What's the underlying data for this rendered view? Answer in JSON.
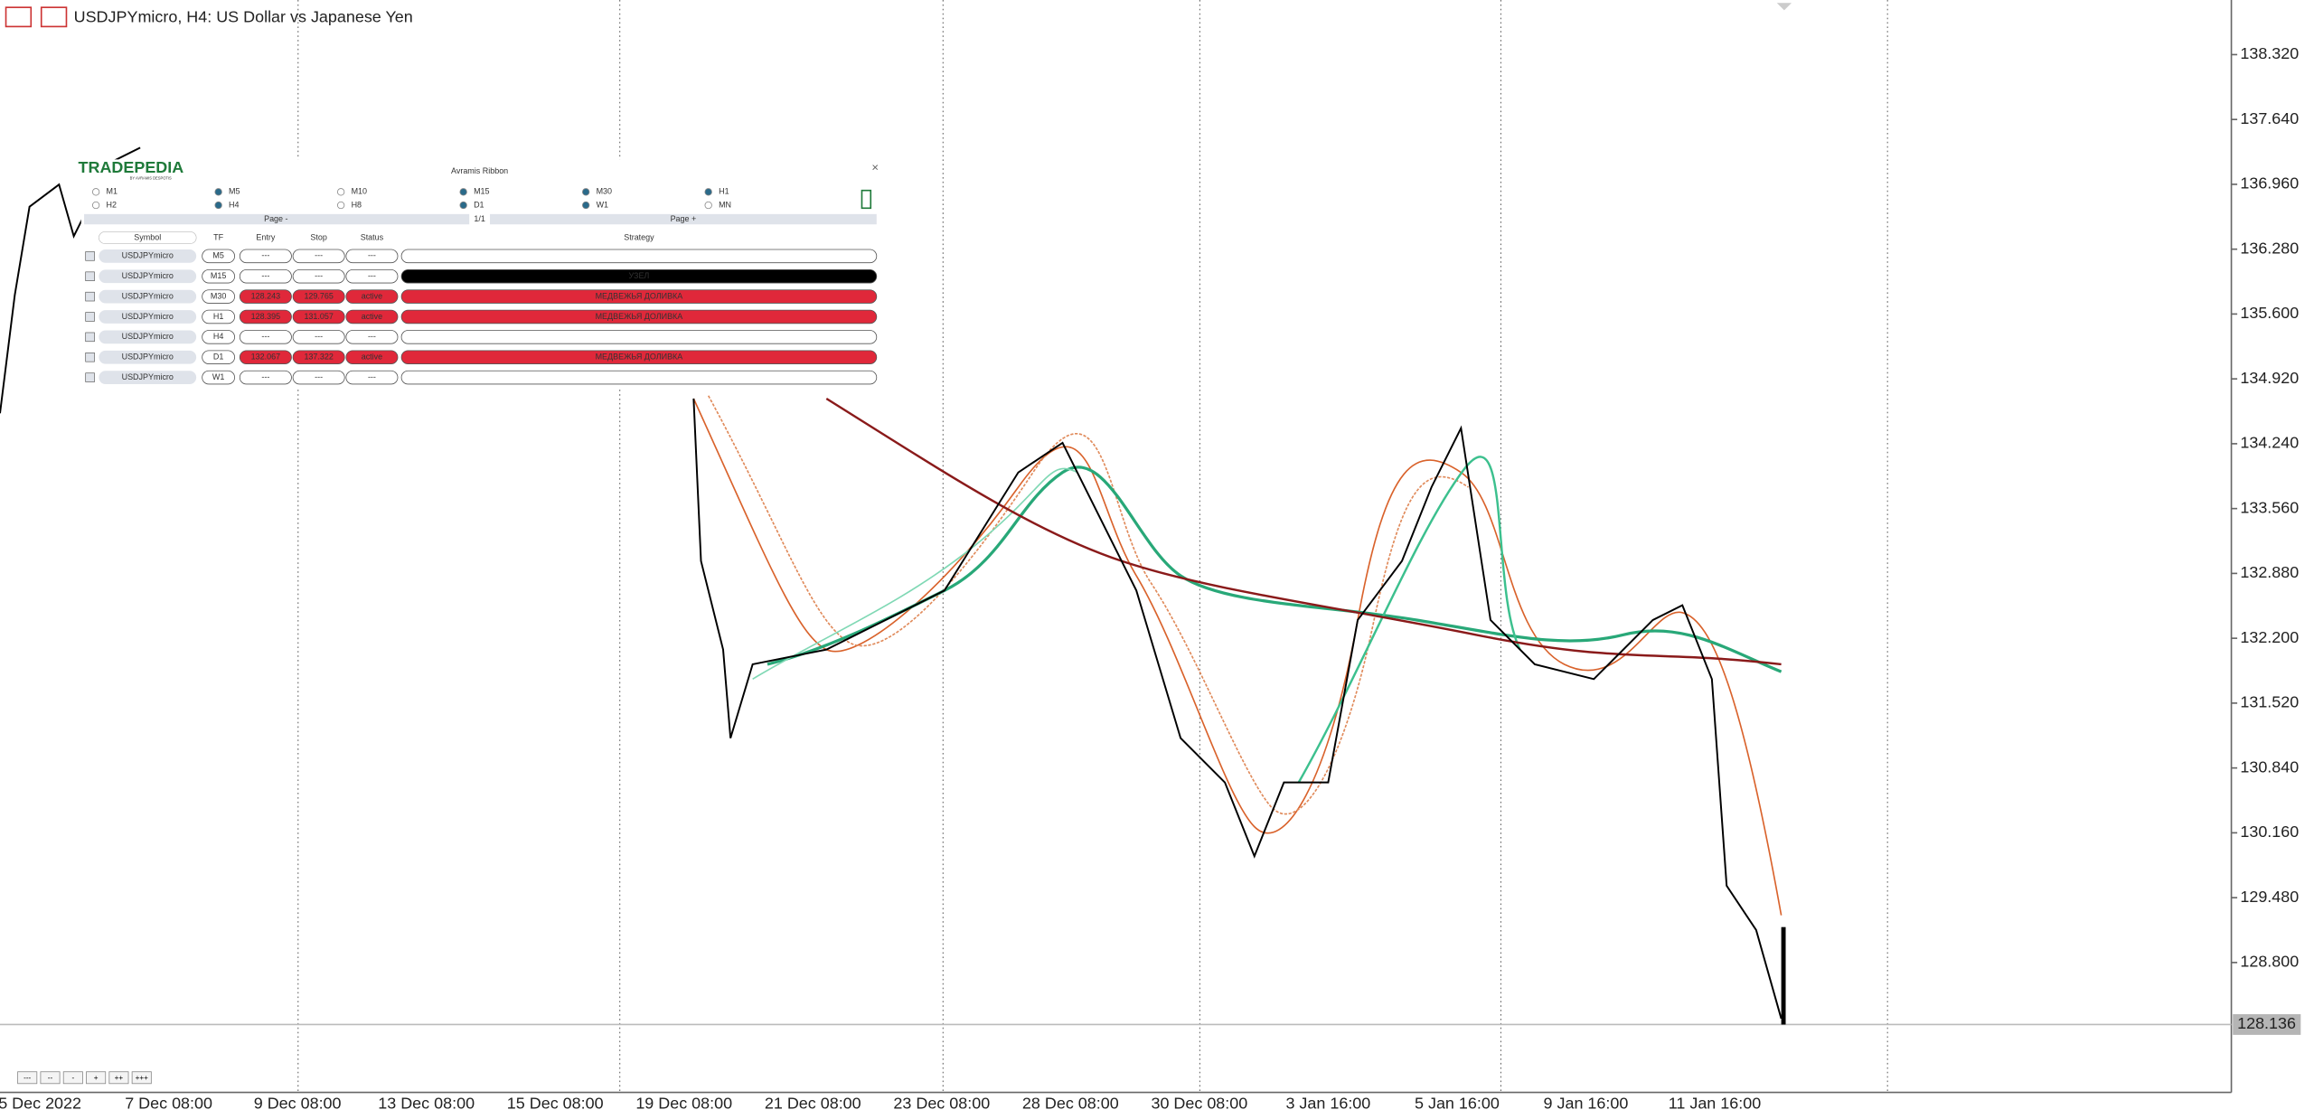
{
  "header": {
    "title": "USDJPYmicro, H4:  US Dollar vs Japanese Yen"
  },
  "price_axis": {
    "labels": [
      "138.320",
      "137.640",
      "136.960",
      "136.280",
      "135.600",
      "134.920",
      "134.240",
      "133.560",
      "132.880",
      "132.200",
      "131.520",
      "130.840",
      "130.160",
      "129.480",
      "128.800"
    ],
    "current": "128.136"
  },
  "time_axis": {
    "labels": [
      "5 Dec 2022",
      "7 Dec 08:00",
      "9 Dec 08:00",
      "13 Dec 08:00",
      "15 Dec 08:00",
      "19 Dec 08:00",
      "21 Dec 08:00",
      "23 Dec 08:00",
      "28 Dec 08:00",
      "30 Dec 08:00",
      "3 Jan 16:00",
      "5 Jan 16:00",
      "9 Jan 16:00",
      "11 Jan 16:00"
    ]
  },
  "zoom_buttons": [
    "---",
    "--",
    "-",
    "+",
    "++",
    "+++"
  ],
  "panel": {
    "title": "Avramis Ribbon",
    "logo": "TRADEPEDIA",
    "logo_sub": "BY AVRAMIS DESPOTIS",
    "close": "×",
    "timeframes": [
      [
        "M1",
        "M5",
        "M10",
        "M15",
        "M30",
        "H1"
      ],
      [
        "H2",
        "H4",
        "H8",
        "D1",
        "W1",
        "MN"
      ]
    ],
    "pager": {
      "prev": "Page -",
      "page": "1/1",
      "next": "Page +"
    },
    "columns": [
      "Symbol",
      "TF",
      "Entry",
      "Stop",
      "Status",
      "Strategy"
    ],
    "rows": [
      {
        "symbol": "USDJPYmicro",
        "tf": "M5",
        "entry": "---",
        "stop": "---",
        "status": "---"
      },
      {
        "symbol": "USDJPYmicro",
        "tf": "M15",
        "entry": "---",
        "stop": "---",
        "status": "---",
        "strategy": "УЗЕЛ"
      },
      {
        "symbol": "USDJPYmicro",
        "tf": "M30",
        "entry": "128.243",
        "stop": "129.765",
        "status": "active",
        "strategy": "МЕДВЕЖЬЯ ДОЛИВКА"
      },
      {
        "symbol": "USDJPYmicro",
        "tf": "H1",
        "entry": "128.395",
        "stop": "131.057",
        "status": "active",
        "strategy": "МЕДВЕЖЬЯ ДОЛИВКА"
      },
      {
        "symbol": "USDJPYmicro",
        "tf": "H4",
        "entry": "---",
        "stop": "---",
        "status": "---"
      },
      {
        "symbol": "USDJPYmicro",
        "tf": "D1",
        "entry": "132.067",
        "stop": "137.322",
        "status": "active",
        "strategy": "МЕДВЕЖЬЯ ДОЛИВКА"
      },
      {
        "symbol": "USDJPYmicro",
        "tf": "W1",
        "entry": "---",
        "stop": "---",
        "status": "---"
      }
    ]
  }
}
